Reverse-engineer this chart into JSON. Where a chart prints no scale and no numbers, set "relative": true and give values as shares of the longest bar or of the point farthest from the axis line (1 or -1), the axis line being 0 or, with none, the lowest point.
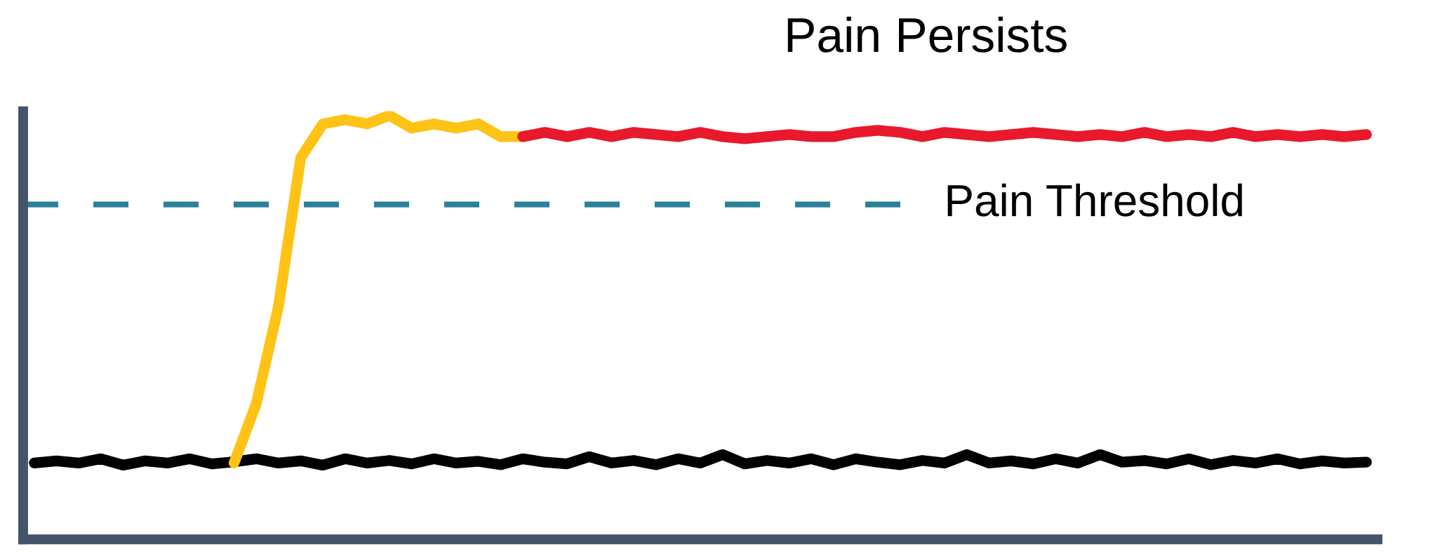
{
  "chart_data": {
    "type": "line",
    "relative": true,
    "line_style": "solid",
    "grid": false,
    "legend": false,
    "categories": [
      null,
      null,
      null,
      null,
      null,
      null,
      null,
      null,
      null,
      null,
      null,
      null,
      null,
      null,
      null,
      null,
      null,
      null,
      null,
      null,
      null,
      null,
      null,
      null,
      null,
      null,
      null,
      null,
      null,
      null,
      null,
      null,
      null,
      null,
      null,
      null,
      null,
      null,
      null,
      null,
      null,
      null,
      null,
      null,
      null,
      null,
      null,
      null,
      null,
      null,
      null,
      null,
      null,
      null,
      null,
      null,
      null,
      null,
      null,
      null,
      null
    ],
    "series": [
      {
        "color": "#000000",
        "values": [
          0.18,
          0.185,
          0.18,
          0.19,
          0.175,
          0.185,
          0.18,
          0.19,
          0.178,
          0.183,
          0.19,
          0.18,
          0.185,
          0.175,
          0.19,
          0.18,
          0.186,
          0.178,
          0.19,
          0.18,
          0.184,
          0.176,
          0.19,
          0.182,
          0.178,
          0.195,
          0.18,
          0.186,
          0.176,
          0.19,
          0.18,
          0.2,
          0.178,
          0.186,
          0.18,
          0.19,
          0.176,
          0.19,
          0.182,
          0.176,
          0.186,
          0.18,
          0.2,
          0.18,
          0.185,
          0.178,
          0.19,
          0.18,
          0.2,
          0.182,
          0.186,
          0.178,
          0.19,
          0.176,
          0.186,
          0.18,
          0.19,
          0.178,
          0.185,
          0.18,
          0.182
        ]
      },
      {
        "color": "#fec314",
        "values": [
          null,
          null,
          null,
          null,
          null,
          null,
          null,
          null,
          null,
          0.18,
          0.32,
          0.55,
          0.9,
          0.98,
          0.99,
          0.98,
          1.0,
          0.97,
          0.98,
          0.97,
          0.98,
          0.95,
          0.95,
          null,
          null,
          null,
          null,
          null,
          null,
          null,
          null,
          null,
          null,
          null,
          null,
          null,
          null,
          null,
          null,
          null,
          null,
          null,
          null,
          null,
          null,
          null,
          null,
          null,
          null,
          null,
          null,
          null,
          null,
          null,
          null,
          null,
          null,
          null,
          null,
          null,
          null
        ]
      },
      {
        "color": "#e8192c",
        "values": [
          null,
          null,
          null,
          null,
          null,
          null,
          null,
          null,
          null,
          null,
          null,
          null,
          null,
          null,
          null,
          null,
          null,
          null,
          null,
          null,
          null,
          null,
          0.95,
          0.96,
          0.95,
          0.96,
          0.95,
          0.96,
          0.955,
          0.95,
          0.96,
          0.95,
          0.945,
          0.95,
          0.955,
          0.95,
          0.95,
          0.96,
          0.965,
          0.96,
          0.95,
          0.96,
          0.955,
          0.95,
          0.955,
          0.96,
          0.955,
          0.95,
          0.955,
          0.95,
          0.96,
          0.95,
          0.955,
          0.95,
          0.96,
          0.95,
          0.955,
          0.95,
          0.955,
          0.95,
          0.955
        ]
      }
    ],
    "ref_lines": [
      {
        "axis": "y",
        "value": 0.79,
        "label": "Pain Threshold",
        "color": "#2a8299",
        "line_style": "dashed"
      }
    ],
    "annotations": [
      "Pain Persists"
    ]
  }
}
